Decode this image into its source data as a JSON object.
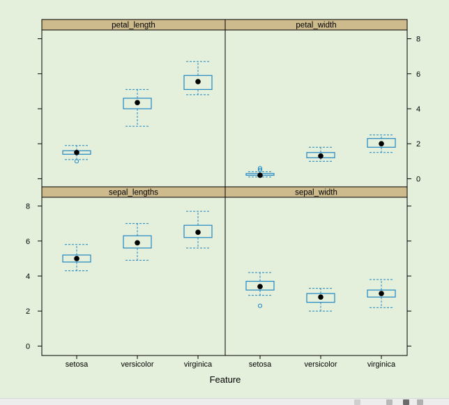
{
  "chart_data": {
    "type": "box",
    "xlabel": "Feature",
    "categories": [
      "setosa",
      "versicolor",
      "virginica"
    ],
    "ylim": [
      -0.5,
      8.5
    ],
    "yticks": [
      0,
      2,
      4,
      6,
      8
    ],
    "colors": {
      "box": "#1f87c3",
      "strip": "#cdbb8e",
      "background": "#e4efdc",
      "median_dot": "#000000"
    },
    "panels": [
      {
        "name": "petal_length",
        "boxes": [
          {
            "category": "setosa",
            "whisker_low": 1.1,
            "q1": 1.4,
            "median": 1.5,
            "q3": 1.6,
            "whisker_high": 1.9,
            "outliers": [
              1.0
            ]
          },
          {
            "category": "versicolor",
            "whisker_low": 3.0,
            "q1": 4.0,
            "median": 4.35,
            "q3": 4.6,
            "whisker_high": 5.1,
            "outliers": []
          },
          {
            "category": "virginica",
            "whisker_low": 4.8,
            "q1": 5.1,
            "median": 5.55,
            "q3": 5.9,
            "whisker_high": 6.7,
            "outliers": []
          }
        ]
      },
      {
        "name": "petal_width",
        "boxes": [
          {
            "category": "setosa",
            "whisker_low": 0.1,
            "q1": 0.2,
            "median": 0.2,
            "q3": 0.3,
            "whisker_high": 0.4,
            "outliers": [
              0.5,
              0.6
            ]
          },
          {
            "category": "versicolor",
            "whisker_low": 1.0,
            "q1": 1.2,
            "median": 1.3,
            "q3": 1.5,
            "whisker_high": 1.8,
            "outliers": []
          },
          {
            "category": "virginica",
            "whisker_low": 1.5,
            "q1": 1.8,
            "median": 2.0,
            "q3": 2.3,
            "whisker_high": 2.5,
            "outliers": []
          }
        ]
      },
      {
        "name": "sepal_lengths",
        "boxes": [
          {
            "category": "setosa",
            "whisker_low": 4.3,
            "q1": 4.8,
            "median": 5.0,
            "q3": 5.2,
            "whisker_high": 5.8,
            "outliers": []
          },
          {
            "category": "versicolor",
            "whisker_low": 4.9,
            "q1": 5.6,
            "median": 5.9,
            "q3": 6.3,
            "whisker_high": 7.0,
            "outliers": []
          },
          {
            "category": "virginica",
            "whisker_low": 5.6,
            "q1": 6.2,
            "median": 6.5,
            "q3": 6.9,
            "whisker_high": 7.7,
            "outliers": []
          }
        ]
      },
      {
        "name": "sepal_width",
        "boxes": [
          {
            "category": "setosa",
            "whisker_low": 2.9,
            "q1": 3.2,
            "median": 3.4,
            "q3": 3.7,
            "whisker_high": 4.2,
            "outliers": [
              2.3
            ]
          },
          {
            "category": "versicolor",
            "whisker_low": 2.0,
            "q1": 2.5,
            "median": 2.8,
            "q3": 3.0,
            "whisker_high": 3.3,
            "outliers": []
          },
          {
            "category": "virginica",
            "whisker_low": 2.2,
            "q1": 2.8,
            "median": 3.0,
            "q3": 3.2,
            "whisker_high": 3.8,
            "outliers": []
          }
        ]
      }
    ]
  }
}
